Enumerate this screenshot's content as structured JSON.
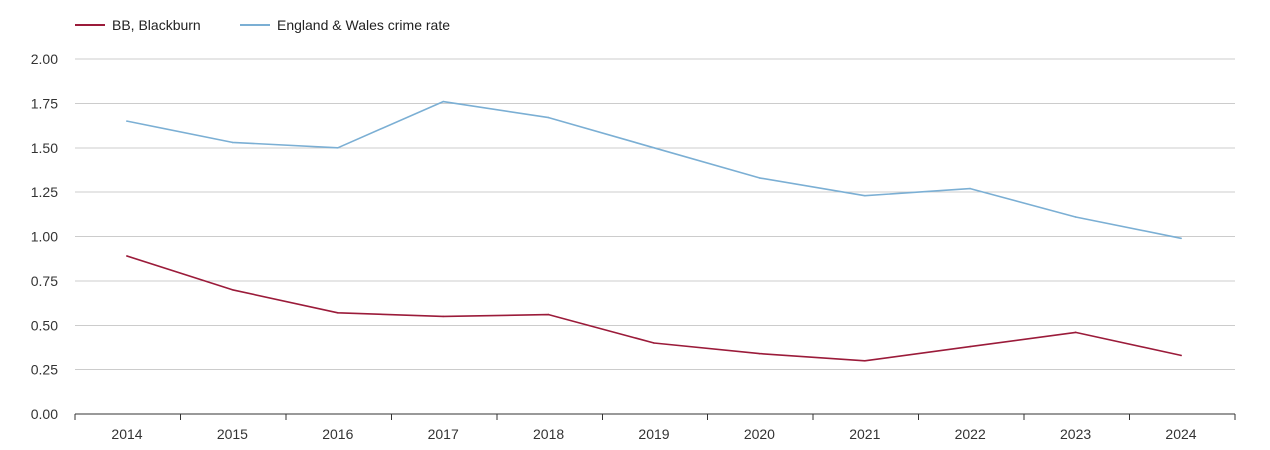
{
  "chart_data": {
    "type": "line",
    "title": "",
    "xlabel": "",
    "ylabel": "",
    "x": [
      "2014",
      "2015",
      "2016",
      "2017",
      "2018",
      "2019",
      "2020",
      "2021",
      "2022",
      "2023",
      "2024"
    ],
    "ylim": [
      0,
      2
    ],
    "yticks": [
      "0.00",
      "0.25",
      "0.50",
      "0.75",
      "1.00",
      "1.25",
      "1.50",
      "1.75",
      "2.00"
    ],
    "grid": true,
    "legend_position": "top-left",
    "series": [
      {
        "name": "BB, Blackburn",
        "color": "#9b1b3a",
        "values": [
          0.89,
          0.7,
          0.57,
          0.55,
          0.56,
          0.4,
          0.34,
          0.3,
          0.38,
          0.46,
          0.33
        ]
      },
      {
        "name": "England & Wales crime rate",
        "color": "#7bafd4",
        "values": [
          1.65,
          1.53,
          1.5,
          1.76,
          1.67,
          1.5,
          1.33,
          1.23,
          1.27,
          1.11,
          0.99
        ]
      }
    ]
  }
}
